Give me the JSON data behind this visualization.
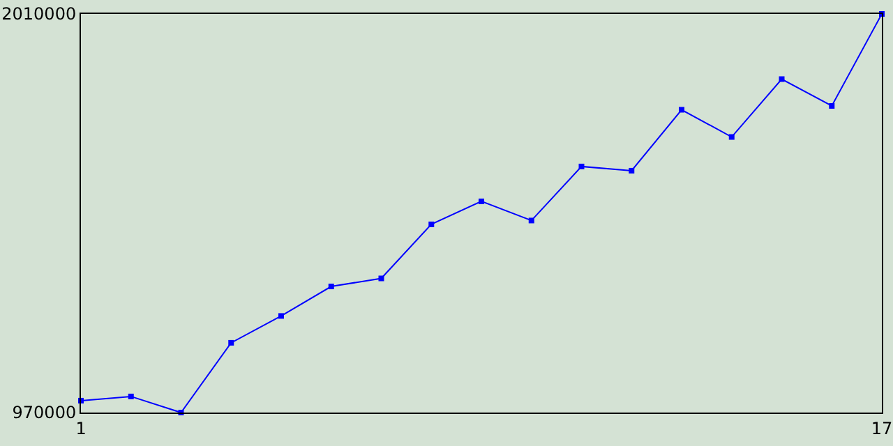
{
  "chart_data": {
    "type": "line",
    "x": [
      1,
      2,
      3,
      4,
      5,
      6,
      7,
      8,
      9,
      10,
      11,
      12,
      13,
      14,
      15,
      16,
      17
    ],
    "series": [
      {
        "color": "#0000ff",
        "values": [
          1001000,
          1012000,
          970000,
          1152000,
          1222000,
          1299000,
          1320000,
          1461000,
          1521000,
          1471000,
          1612000,
          1601000,
          1760000,
          1689000,
          1840000,
          1770000,
          2010000
        ]
      }
    ],
    "xlim": [
      1,
      17
    ],
    "xticks": [
      1,
      17
    ],
    "ylim": [
      970000,
      2010000
    ],
    "yticks": [
      970000,
      2010000
    ],
    "marker": "square",
    "line_style": "solid"
  }
}
